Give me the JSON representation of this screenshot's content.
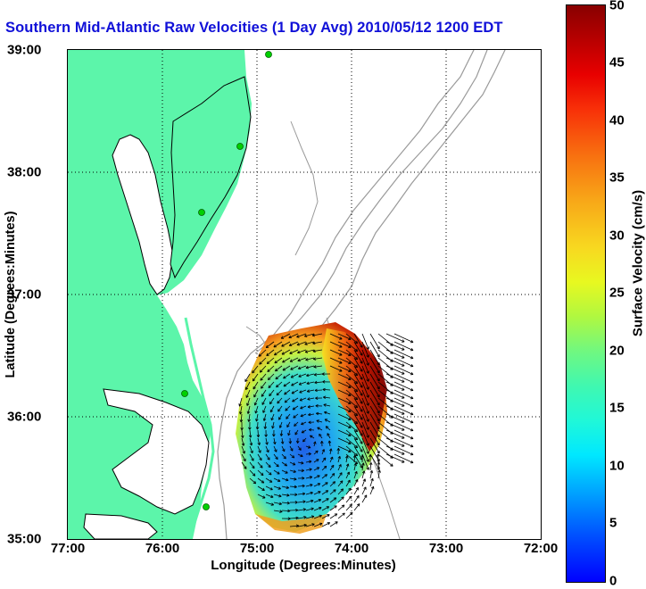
{
  "title": "Southern Mid-Atlantic Raw Velocities (1 Day Avg) 2010/05/12 1200 EDT",
  "x_axis": {
    "label": "Longitude (Degrees:Minutes)",
    "ticks": [
      "77:00",
      "76:00",
      "75:00",
      "74:00",
      "73:00",
      "72:00"
    ]
  },
  "y_axis": {
    "label": "Latitude (Degrees:Minutes)",
    "ticks": [
      "39:00",
      "38:00",
      "37:00",
      "36:00",
      "35:00"
    ]
  },
  "colorbar": {
    "label": "Surface Velocity (cm/s)",
    "ticks": [
      "50",
      "45",
      "40",
      "35",
      "30",
      "25",
      "20",
      "15",
      "10",
      "5",
      "0"
    ],
    "range": [
      0,
      50
    ]
  },
  "colors": {
    "land": "#5cf5aa",
    "title": "#1010d8",
    "coastline": "#000000",
    "bathymetry": "#9a9a9a",
    "station": "#00d000"
  },
  "grid": true
}
